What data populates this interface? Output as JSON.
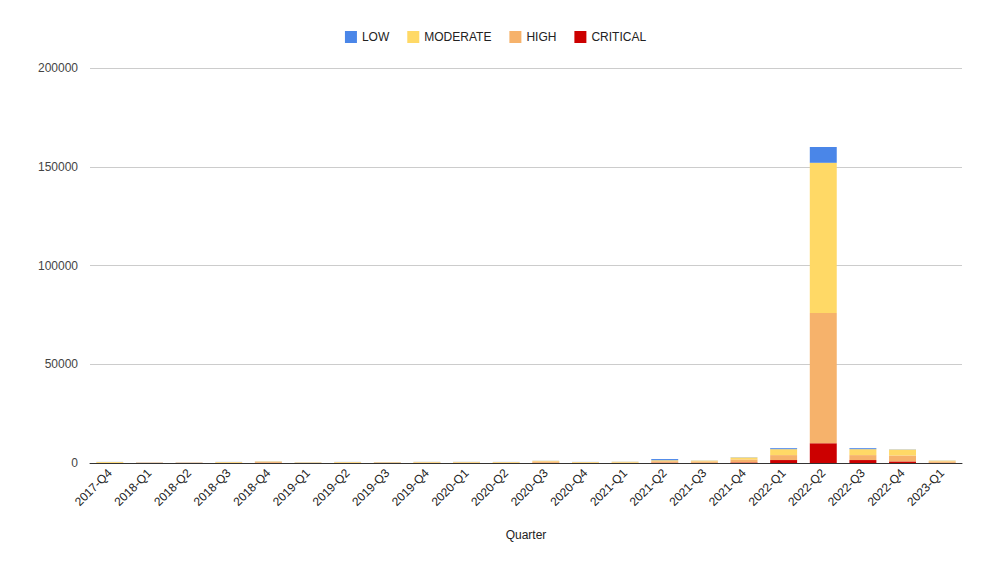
{
  "chart_data": {
    "type": "bar",
    "stacked": true,
    "grid": true,
    "legend": "top",
    "x_label": "Quarter",
    "categories": [
      "2017-Q4",
      "2018-Q1",
      "2018-Q2",
      "2018-Q3",
      "2018-Q4",
      "2019-Q1",
      "2019-Q2",
      "2019-Q3",
      "2019-Q4",
      "2020-Q1",
      "2020-Q2",
      "2020-Q3",
      "2020-Q4",
      "2021-Q1",
      "2021-Q2",
      "2021-Q3",
      "2021-Q4",
      "2022-Q1",
      "2022-Q2",
      "2022-Q3",
      "2022-Q4",
      "2023-Q1"
    ],
    "series": [
      {
        "name": "LOW",
        "color": "#4a86e8",
        "values": [
          50,
          50,
          50,
          50,
          50,
          50,
          50,
          50,
          50,
          50,
          50,
          50,
          50,
          50,
          600,
          50,
          100,
          500,
          8000,
          500,
          100,
          50
        ]
      },
      {
        "name": "MODERATE",
        "color": "#ffd966",
        "values": [
          400,
          100,
          100,
          300,
          200,
          200,
          300,
          200,
          300,
          300,
          300,
          300,
          300,
          400,
          500,
          400,
          1000,
          3000,
          76000,
          3000,
          3000,
          400
        ]
      },
      {
        "name": "HIGH",
        "color": "#f6b26b",
        "values": [
          100,
          100,
          100,
          200,
          500,
          100,
          200,
          200,
          200,
          200,
          200,
          700,
          200,
          200,
          700,
          700,
          1500,
          2500,
          66000,
          2500,
          3000,
          700
        ]
      },
      {
        "name": "CRITICAL",
        "color": "#cc0000",
        "values": [
          20,
          50,
          50,
          20,
          100,
          20,
          20,
          50,
          50,
          50,
          20,
          100,
          20,
          20,
          200,
          100,
          300,
          1500,
          10000,
          1500,
          800,
          100
        ]
      }
    ],
    "ylim": [
      0,
      200000
    ],
    "yticks": [
      0,
      50000,
      100000,
      150000,
      200000
    ]
  }
}
